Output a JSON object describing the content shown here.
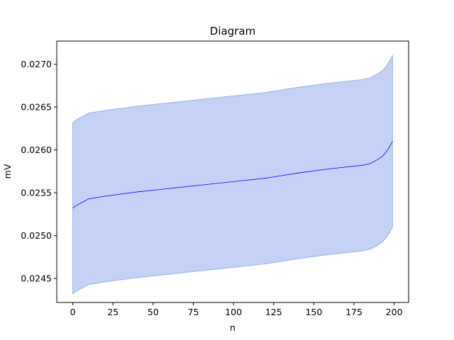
{
  "chart_data": {
    "type": "area",
    "title": "Diagram",
    "xlabel": "n",
    "ylabel": "mV",
    "xlim": [
      -10,
      209
    ],
    "ylim": [
      0.02422,
      0.02727
    ],
    "xticks": [
      0,
      25,
      50,
      75,
      100,
      125,
      150,
      175,
      200
    ],
    "yticks": [
      0.0245,
      0.025,
      0.0255,
      0.026,
      0.0265,
      0.027
    ],
    "ytick_labels": [
      "0.0245",
      "0.0250",
      "0.0255",
      "0.0260",
      "0.0265",
      "0.0270"
    ],
    "grid": false,
    "legend": "none",
    "colors": {
      "line": "#0000ff",
      "band": "#6e8ce6",
      "band_alpha": 0.4
    },
    "series": [
      {
        "x": [
          0,
          2,
          5,
          8,
          10,
          20,
          40,
          60,
          80,
          100,
          120,
          140,
          160,
          180,
          185,
          190,
          193,
          196,
          199
        ],
        "mid": [
          0.02532,
          0.02535,
          0.02538,
          0.02541,
          0.02543,
          0.02546,
          0.02551,
          0.02555,
          0.02559,
          0.02563,
          0.02567,
          0.02573,
          0.02578,
          0.02582,
          0.02584,
          0.02589,
          0.02593,
          0.026,
          0.0261
        ],
        "lower": [
          0.02432,
          0.02435,
          0.02438,
          0.02441,
          0.02443,
          0.02446,
          0.02451,
          0.02455,
          0.02459,
          0.02463,
          0.02467,
          0.02473,
          0.02478,
          0.02482,
          0.02484,
          0.02489,
          0.02493,
          0.025,
          0.0251
        ],
        "upper": [
          0.02632,
          0.02635,
          0.02638,
          0.02641,
          0.02643,
          0.02646,
          0.02651,
          0.02655,
          0.02659,
          0.02663,
          0.02667,
          0.02673,
          0.02678,
          0.02682,
          0.02684,
          0.02689,
          0.02693,
          0.027,
          0.0271
        ]
      }
    ]
  }
}
